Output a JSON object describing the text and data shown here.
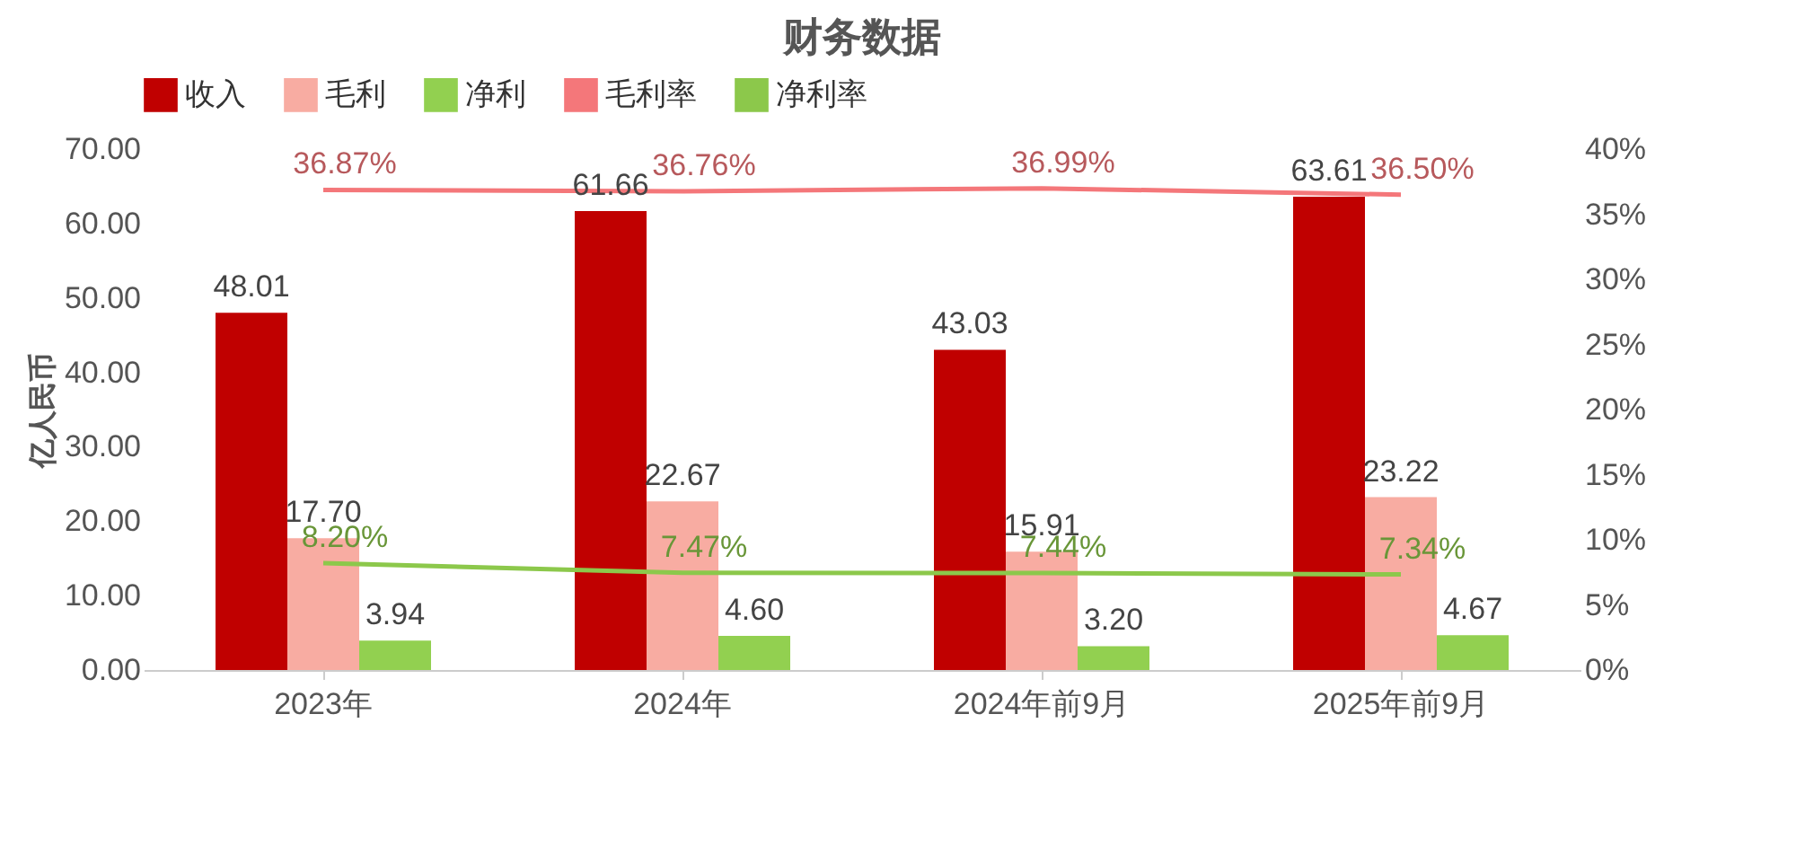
{
  "chart_data": {
    "type": "bar",
    "title": "财务数据",
    "ylabel": "亿人民币",
    "categories": [
      "2023年",
      "2024年",
      "2024年前9月",
      "2025年前9月"
    ],
    "series": [
      {
        "name": "收入",
        "color": "#c00000",
        "values": [
          48.01,
          61.66,
          43.03,
          63.61
        ],
        "value_labels": [
          "48.01",
          "61.66",
          "43.03",
          "63.61"
        ]
      },
      {
        "name": "毛利",
        "color": "#f8aca2",
        "values": [
          17.7,
          22.67,
          15.91,
          23.22
        ],
        "value_labels": [
          "17.70",
          "22.67",
          "15.91",
          "23.22"
        ]
      },
      {
        "name": "净利",
        "color": "#92d050",
        "values": [
          3.94,
          4.6,
          3.2,
          4.67
        ],
        "value_labels": [
          "3.94",
          "4.60",
          "3.20",
          "4.67"
        ]
      },
      {
        "name": "毛利率",
        "type": "line",
        "axis": "y2",
        "color": "#f4777a",
        "values": [
          36.87,
          36.76,
          36.99,
          36.5
        ],
        "value_labels": [
          "36.87%",
          "36.76%",
          "36.99%",
          "36.50%"
        ]
      },
      {
        "name": "净利率",
        "type": "line",
        "axis": "y2",
        "color": "#8cc84b",
        "values": [
          8.2,
          7.47,
          7.44,
          7.34
        ],
        "value_labels": [
          "8.20%",
          "7.47%",
          "7.44%",
          "7.34%"
        ]
      }
    ],
    "ylim": [
      0,
      70
    ],
    "yticks": [
      {
        "value": 0,
        "label": "0.00"
      },
      {
        "value": 10,
        "label": "10.00"
      },
      {
        "value": 20,
        "label": "20.00"
      },
      {
        "value": 30,
        "label": "30.00"
      },
      {
        "value": 40,
        "label": "40.00"
      },
      {
        "value": 50,
        "label": "50.00"
      },
      {
        "value": 60,
        "label": "60.00"
      },
      {
        "value": 70,
        "label": "70.00"
      }
    ],
    "y2lim": [
      0,
      40
    ],
    "y2ticks": [
      {
        "value": 0,
        "label": "0%"
      },
      {
        "value": 5,
        "label": "5%"
      },
      {
        "value": 10,
        "label": "10%"
      },
      {
        "value": 15,
        "label": "15%"
      },
      {
        "value": 20,
        "label": "20%"
      },
      {
        "value": 25,
        "label": "25%"
      },
      {
        "value": 30,
        "label": "30%"
      },
      {
        "value": 35,
        "label": "35%"
      },
      {
        "value": 40,
        "label": "40%"
      }
    ],
    "grid": false,
    "legend": "top",
    "marker": "none",
    "line_style": "solid"
  }
}
